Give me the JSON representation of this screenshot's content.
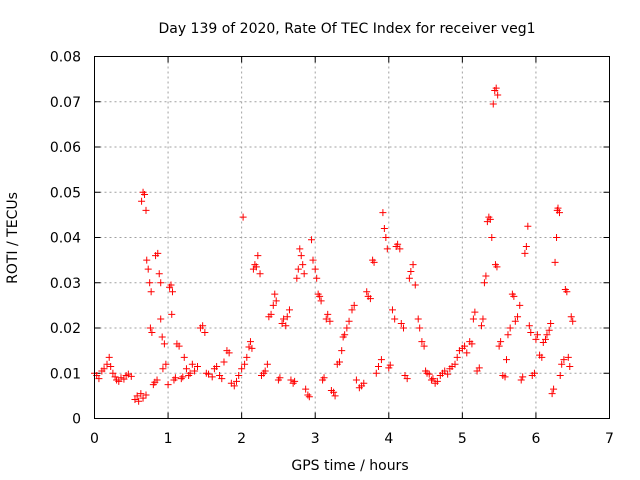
{
  "chart_data": {
    "type": "scatter",
    "title": "Day 139 of 2020, Rate Of TEC Index for receiver veg1",
    "xlabel": "GPS time / hours",
    "ylabel": "ROTI / TECUs",
    "xlim": [
      0,
      7
    ],
    "ylim": [
      0,
      0.08
    ],
    "x_ticks": [
      0,
      1,
      2,
      3,
      4,
      5,
      6,
      7
    ],
    "y_ticks": [
      0,
      0.01,
      0.02,
      0.03,
      0.04,
      0.05,
      0.06,
      0.07,
      0.08
    ],
    "x_tick_labels": [
      "0",
      "1",
      "2",
      "3",
      "4",
      "5",
      "6",
      "7"
    ],
    "y_tick_labels": [
      "0",
      "0.01",
      "0.02",
      "0.03",
      "0.04",
      "0.05",
      "0.06",
      "0.07",
      "0.08"
    ],
    "grid": true,
    "marker": "plus",
    "marker_color": "#ff0000",
    "series": [
      {
        "name": "ROTI",
        "points": [
          [
            0.0,
            0.01
          ],
          [
            0.03,
            0.0095
          ],
          [
            0.06,
            0.0088
          ],
          [
            0.1,
            0.0105
          ],
          [
            0.13,
            0.011
          ],
          [
            0.17,
            0.012
          ],
          [
            0.2,
            0.0135
          ],
          [
            0.22,
            0.0115
          ],
          [
            0.25,
            0.01
          ],
          [
            0.28,
            0.0092
          ],
          [
            0.3,
            0.0085
          ],
          [
            0.33,
            0.0082
          ],
          [
            0.36,
            0.009
          ],
          [
            0.4,
            0.0087
          ],
          [
            0.43,
            0.0095
          ],
          [
            0.46,
            0.0098
          ],
          [
            0.5,
            0.0093
          ],
          [
            0.55,
            0.0042
          ],
          [
            0.58,
            0.005
          ],
          [
            0.6,
            0.0038
          ],
          [
            0.63,
            0.0055
          ],
          [
            0.66,
            0.0045
          ],
          [
            0.7,
            0.0052
          ],
          [
            0.64,
            0.048
          ],
          [
            0.66,
            0.05
          ],
          [
            0.68,
            0.0495
          ],
          [
            0.7,
            0.046
          ],
          [
            0.71,
            0.035
          ],
          [
            0.73,
            0.033
          ],
          [
            0.75,
            0.03
          ],
          [
            0.77,
            0.028
          ],
          [
            0.76,
            0.02
          ],
          [
            0.78,
            0.019
          ],
          [
            0.8,
            0.0075
          ],
          [
            0.82,
            0.008
          ],
          [
            0.85,
            0.0085
          ],
          [
            0.83,
            0.036
          ],
          [
            0.86,
            0.0365
          ],
          [
            0.88,
            0.032
          ],
          [
            0.9,
            0.03
          ],
          [
            0.9,
            0.022
          ],
          [
            0.92,
            0.018
          ],
          [
            0.95,
            0.0165
          ],
          [
            0.93,
            0.011
          ],
          [
            0.97,
            0.012
          ],
          [
            1.0,
            0.0075
          ],
          [
            1.02,
            0.029
          ],
          [
            1.04,
            0.0295
          ],
          [
            1.06,
            0.028
          ],
          [
            1.05,
            0.023
          ],
          [
            1.08,
            0.0085
          ],
          [
            1.1,
            0.009
          ],
          [
            1.12,
            0.0165
          ],
          [
            1.15,
            0.016
          ],
          [
            1.18,
            0.0088
          ],
          [
            1.2,
            0.0092
          ],
          [
            1.22,
            0.0135
          ],
          [
            1.25,
            0.011
          ],
          [
            1.28,
            0.0095
          ],
          [
            1.3,
            0.01
          ],
          [
            1.33,
            0.012
          ],
          [
            1.36,
            0.0105
          ],
          [
            1.4,
            0.0115
          ],
          [
            1.44,
            0.02
          ],
          [
            1.47,
            0.0205
          ],
          [
            1.5,
            0.019
          ],
          [
            1.52,
            0.01
          ],
          [
            1.55,
            0.0098
          ],
          [
            1.6,
            0.0092
          ],
          [
            1.63,
            0.011
          ],
          [
            1.66,
            0.0115
          ],
          [
            1.7,
            0.0095
          ],
          [
            1.73,
            0.0088
          ],
          [
            1.76,
            0.0125
          ],
          [
            1.8,
            0.015
          ],
          [
            1.83,
            0.0145
          ],
          [
            1.86,
            0.0078
          ],
          [
            1.9,
            0.0072
          ],
          [
            1.93,
            0.0082
          ],
          [
            1.96,
            0.0095
          ],
          [
            2.0,
            0.011
          ],
          [
            2.02,
            0.0445
          ],
          [
            2.04,
            0.012
          ],
          [
            2.07,
            0.0135
          ],
          [
            2.1,
            0.0158
          ],
          [
            2.12,
            0.017
          ],
          [
            2.14,
            0.0155
          ],
          [
            2.16,
            0.033
          ],
          [
            2.18,
            0.034
          ],
          [
            2.2,
            0.0335
          ],
          [
            2.22,
            0.036
          ],
          [
            2.25,
            0.032
          ],
          [
            2.27,
            0.0095
          ],
          [
            2.3,
            0.01
          ],
          [
            2.32,
            0.0105
          ],
          [
            2.35,
            0.012
          ],
          [
            2.37,
            0.0225
          ],
          [
            2.4,
            0.023
          ],
          [
            2.43,
            0.025
          ],
          [
            2.45,
            0.0275
          ],
          [
            2.47,
            0.026
          ],
          [
            2.5,
            0.0085
          ],
          [
            2.52,
            0.009
          ],
          [
            2.55,
            0.021
          ],
          [
            2.57,
            0.022
          ],
          [
            2.6,
            0.0205
          ],
          [
            2.62,
            0.0225
          ],
          [
            2.65,
            0.024
          ],
          [
            2.67,
            0.0085
          ],
          [
            2.7,
            0.0078
          ],
          [
            2.72,
            0.0082
          ],
          [
            2.75,
            0.031
          ],
          [
            2.77,
            0.033
          ],
          [
            2.79,
            0.0375
          ],
          [
            2.81,
            0.036
          ],
          [
            2.83,
            0.034
          ],
          [
            2.85,
            0.032
          ],
          [
            2.87,
            0.0065
          ],
          [
            2.9,
            0.0052
          ],
          [
            2.92,
            0.0048
          ],
          [
            2.95,
            0.0395
          ],
          [
            2.97,
            0.035
          ],
          [
            3.0,
            0.033
          ],
          [
            3.02,
            0.031
          ],
          [
            3.04,
            0.0275
          ],
          [
            3.06,
            0.027
          ],
          [
            3.08,
            0.026
          ],
          [
            3.1,
            0.0085
          ],
          [
            3.12,
            0.009
          ],
          [
            3.15,
            0.022
          ],
          [
            3.17,
            0.023
          ],
          [
            3.2,
            0.0215
          ],
          [
            3.22,
            0.0062
          ],
          [
            3.25,
            0.0058
          ],
          [
            3.27,
            0.005
          ],
          [
            3.3,
            0.012
          ],
          [
            3.33,
            0.0125
          ],
          [
            3.36,
            0.015
          ],
          [
            3.38,
            0.018
          ],
          [
            3.4,
            0.0185
          ],
          [
            3.43,
            0.02
          ],
          [
            3.46,
            0.0215
          ],
          [
            3.5,
            0.024
          ],
          [
            3.53,
            0.025
          ],
          [
            3.56,
            0.0085
          ],
          [
            3.6,
            0.0068
          ],
          [
            3.63,
            0.0072
          ],
          [
            3.66,
            0.0078
          ],
          [
            3.7,
            0.028
          ],
          [
            3.72,
            0.027
          ],
          [
            3.75,
            0.0265
          ],
          [
            3.78,
            0.035
          ],
          [
            3.8,
            0.0345
          ],
          [
            3.83,
            0.01
          ],
          [
            3.86,
            0.0115
          ],
          [
            3.9,
            0.013
          ],
          [
            3.92,
            0.0455
          ],
          [
            3.94,
            0.042
          ],
          [
            3.96,
            0.04
          ],
          [
            3.98,
            0.0375
          ],
          [
            4.0,
            0.0112
          ],
          [
            4.02,
            0.0118
          ],
          [
            4.05,
            0.024
          ],
          [
            4.08,
            0.022
          ],
          [
            4.1,
            0.038
          ],
          [
            4.12,
            0.0385
          ],
          [
            4.15,
            0.0375
          ],
          [
            4.17,
            0.021
          ],
          [
            4.2,
            0.02
          ],
          [
            4.22,
            0.0095
          ],
          [
            4.25,
            0.0088
          ],
          [
            4.28,
            0.031
          ],
          [
            4.3,
            0.0325
          ],
          [
            4.33,
            0.034
          ],
          [
            4.36,
            0.0295
          ],
          [
            4.4,
            0.022
          ],
          [
            4.42,
            0.02
          ],
          [
            4.45,
            0.017
          ],
          [
            4.48,
            0.016
          ],
          [
            4.5,
            0.0105
          ],
          [
            4.52,
            0.01
          ],
          [
            4.55,
            0.0098
          ],
          [
            4.58,
            0.0085
          ],
          [
            4.6,
            0.0088
          ],
          [
            4.63,
            0.0078
          ],
          [
            4.66,
            0.0082
          ],
          [
            4.7,
            0.0095
          ],
          [
            4.73,
            0.01
          ],
          [
            4.76,
            0.0105
          ],
          [
            4.8,
            0.0098
          ],
          [
            4.83,
            0.011
          ],
          [
            4.86,
            0.0115
          ],
          [
            4.9,
            0.012
          ],
          [
            4.93,
            0.0135
          ],
          [
            4.96,
            0.015
          ],
          [
            5.0,
            0.0155
          ],
          [
            5.03,
            0.016
          ],
          [
            5.06,
            0.0145
          ],
          [
            5.1,
            0.017
          ],
          [
            5.13,
            0.0165
          ],
          [
            5.15,
            0.022
          ],
          [
            5.17,
            0.0235
          ],
          [
            5.2,
            0.0105
          ],
          [
            5.23,
            0.0112
          ],
          [
            5.26,
            0.0205
          ],
          [
            5.28,
            0.022
          ],
          [
            5.3,
            0.03
          ],
          [
            5.32,
            0.0315
          ],
          [
            5.34,
            0.0435
          ],
          [
            5.36,
            0.0445
          ],
          [
            5.38,
            0.044
          ],
          [
            5.4,
            0.04
          ],
          [
            5.42,
            0.0695
          ],
          [
            5.44,
            0.0725
          ],
          [
            5.46,
            0.073
          ],
          [
            5.48,
            0.0715
          ],
          [
            5.45,
            0.034
          ],
          [
            5.47,
            0.0335
          ],
          [
            5.5,
            0.016
          ],
          [
            5.52,
            0.017
          ],
          [
            5.55,
            0.0095
          ],
          [
            5.58,
            0.0092
          ],
          [
            5.6,
            0.013
          ],
          [
            5.62,
            0.0185
          ],
          [
            5.65,
            0.02
          ],
          [
            5.68,
            0.0275
          ],
          [
            5.7,
            0.027
          ],
          [
            5.72,
            0.0215
          ],
          [
            5.75,
            0.0225
          ],
          [
            5.78,
            0.025
          ],
          [
            5.8,
            0.0085
          ],
          [
            5.82,
            0.0092
          ],
          [
            5.85,
            0.0365
          ],
          [
            5.87,
            0.038
          ],
          [
            5.89,
            0.0425
          ],
          [
            5.91,
            0.0205
          ],
          [
            5.93,
            0.019
          ],
          [
            5.95,
            0.0095
          ],
          [
            5.98,
            0.01
          ],
          [
            6.0,
            0.0175
          ],
          [
            6.02,
            0.0185
          ],
          [
            6.05,
            0.014
          ],
          [
            6.08,
            0.0135
          ],
          [
            6.1,
            0.0168
          ],
          [
            6.13,
            0.0175
          ],
          [
            6.15,
            0.0185
          ],
          [
            6.18,
            0.0195
          ],
          [
            6.2,
            0.021
          ],
          [
            6.22,
            0.0055
          ],
          [
            6.24,
            0.0065
          ],
          [
            6.26,
            0.0345
          ],
          [
            6.28,
            0.04
          ],
          [
            6.29,
            0.046
          ],
          [
            6.3,
            0.0465
          ],
          [
            6.32,
            0.0455
          ],
          [
            6.33,
            0.0095
          ],
          [
            6.35,
            0.012
          ],
          [
            6.38,
            0.013
          ],
          [
            6.4,
            0.0285
          ],
          [
            6.42,
            0.028
          ],
          [
            6.44,
            0.0135
          ],
          [
            6.46,
            0.0115
          ],
          [
            6.48,
            0.0225
          ],
          [
            6.5,
            0.0215
          ]
        ]
      }
    ]
  }
}
